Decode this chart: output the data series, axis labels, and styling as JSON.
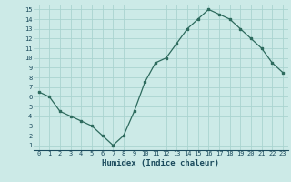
{
  "x": [
    0,
    1,
    2,
    3,
    4,
    5,
    6,
    7,
    8,
    9,
    10,
    11,
    12,
    13,
    14,
    15,
    16,
    17,
    18,
    19,
    20,
    21,
    22,
    23
  ],
  "y": [
    6.5,
    6.0,
    4.5,
    4.0,
    3.5,
    3.0,
    2.0,
    1.0,
    2.0,
    4.5,
    7.5,
    9.5,
    10.0,
    11.5,
    13.0,
    14.0,
    15.0,
    14.5,
    14.0,
    13.0,
    12.0,
    11.0,
    9.5,
    8.5
  ],
  "line_color": "#2e6b5e",
  "bg_color": "#cceae7",
  "grid_color": "#aad4d0",
  "xlabel": "Humidex (Indice chaleur)",
  "xlabel_color": "#1a4a5c",
  "tick_color": "#1a4a5c",
  "xlim": [
    -0.5,
    23.5
  ],
  "ylim": [
    0.5,
    15.5
  ],
  "yticks": [
    1,
    2,
    3,
    4,
    5,
    6,
    7,
    8,
    9,
    10,
    11,
    12,
    13,
    14,
    15
  ],
  "xticks": [
    0,
    1,
    2,
    3,
    4,
    5,
    6,
    7,
    8,
    9,
    10,
    11,
    12,
    13,
    14,
    15,
    16,
    17,
    18,
    19,
    20,
    21,
    22,
    23
  ],
  "xtick_labels": [
    "0",
    "1",
    "2",
    "3",
    "4",
    "5",
    "6",
    "7",
    "8",
    "9",
    "10",
    "11",
    "12",
    "13",
    "14",
    "15",
    "16",
    "17",
    "18",
    "19",
    "20",
    "21",
    "22",
    "23"
  ]
}
